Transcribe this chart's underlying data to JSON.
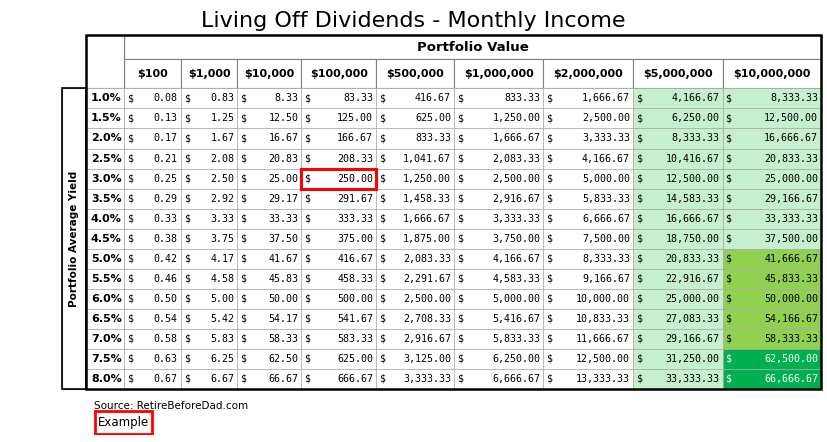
{
  "title": "Living Off Dividends - Monthly Income",
  "col_header_top": "Portfolio Value",
  "col_headers": [
    "$100",
    "$1,000",
    "$10,000",
    "$100,000",
    "$500,000",
    "$1,000,000",
    "$2,000,000",
    "$5,000,000",
    "$10,000,000"
  ],
  "row_headers": [
    "1.0%",
    "1.5%",
    "2.0%",
    "2.5%",
    "3.0%",
    "3.5%",
    "4.0%",
    "4.5%",
    "5.0%",
    "5.5%",
    "6.0%",
    "6.5%",
    "7.0%",
    "7.5%",
    "8.0%"
  ],
  "row_label": "Portfolio Average Yield",
  "source": "Source: RetireBeforeDad.com",
  "example_label": "Example",
  "data_dollar": [
    [
      "0.08",
      "0.83",
      "8.33",
      "83.33",
      "416.67",
      "833.33",
      "1,666.67",
      "4,166.67",
      "8,333.33"
    ],
    [
      "0.13",
      "1.25",
      "12.50",
      "125.00",
      "625.00",
      "1,250.00",
      "2,500.00",
      "6,250.00",
      "12,500.00"
    ],
    [
      "0.17",
      "1.67",
      "16.67",
      "166.67",
      "833.33",
      "1,666.67",
      "3,333.33",
      "8,333.33",
      "16,666.67"
    ],
    [
      "0.21",
      "2.08",
      "20.83",
      "208.33",
      "1,041.67",
      "2,083.33",
      "4,166.67",
      "10,416.67",
      "20,833.33"
    ],
    [
      "0.25",
      "2.50",
      "25.00",
      "250.00",
      "1,250.00",
      "2,500.00",
      "5,000.00",
      "12,500.00",
      "25,000.00"
    ],
    [
      "0.29",
      "2.92",
      "29.17",
      "291.67",
      "1,458.33",
      "2,916.67",
      "5,833.33",
      "14,583.33",
      "29,166.67"
    ],
    [
      "0.33",
      "3.33",
      "33.33",
      "333.33",
      "1,666.67",
      "3,333.33",
      "6,666.67",
      "16,666.67",
      "33,333.33"
    ],
    [
      "0.38",
      "3.75",
      "37.50",
      "375.00",
      "1,875.00",
      "3,750.00",
      "7,500.00",
      "18,750.00",
      "37,500.00"
    ],
    [
      "0.42",
      "4.17",
      "41.67",
      "416.67",
      "2,083.33",
      "4,166.67",
      "8,333.33",
      "20,833.33",
      "41,666.67"
    ],
    [
      "0.46",
      "4.58",
      "45.83",
      "458.33",
      "2,291.67",
      "4,583.33",
      "9,166.67",
      "22,916.67",
      "45,833.33"
    ],
    [
      "0.50",
      "5.00",
      "50.00",
      "500.00",
      "2,500.00",
      "5,000.00",
      "10,000.00",
      "25,000.00",
      "50,000.00"
    ],
    [
      "0.54",
      "5.42",
      "54.17",
      "541.67",
      "2,708.33",
      "5,416.67",
      "10,833.33",
      "27,083.33",
      "54,166.67"
    ],
    [
      "0.58",
      "5.83",
      "58.33",
      "583.33",
      "2,916.67",
      "5,833.33",
      "11,666.67",
      "29,166.67",
      "58,333.33"
    ],
    [
      "0.63",
      "6.25",
      "62.50",
      "625.00",
      "3,125.00",
      "6,250.00",
      "12,500.00",
      "31,250.00",
      "62,500.00"
    ],
    [
      "0.67",
      "6.67",
      "66.67",
      "666.67",
      "3,333.33",
      "6,666.67",
      "13,333.33",
      "33,333.33",
      "66,666.67"
    ]
  ],
  "highlight_cell": [
    4,
    3
  ],
  "bg_color": "#ffffff",
  "cell_bg_white": "#ffffff",
  "cell_bg_light_green": "#C6EFCE",
  "cell_bg_green": "#92D050",
  "cell_bg_dark_green": "#00B050",
  "highlight_border_color": "#FF0000",
  "grid_color": "#A9A9A9",
  "outer_border_color": "#000000",
  "title_fontsize": 16,
  "green_col_threshold": 7,
  "last_col": 8,
  "green_row_thresholds": [
    8,
    11,
    13
  ],
  "col_green_colors": {
    "7": [
      "#C6EFCE",
      "#C6EFCE",
      "#C6EFCE",
      "#C6EFCE",
      "#C6EFCE",
      "#C6EFCE",
      "#C6EFCE",
      "#C6EFCE",
      "#C6EFCE",
      "#C6EFCE",
      "#C6EFCE",
      "#C6EFCE",
      "#C6EFCE",
      "#C6EFCE",
      "#C6EFCE"
    ],
    "8": [
      "#C6EFCE",
      "#C6EFCE",
      "#C6EFCE",
      "#C6EFCE",
      "#C6EFCE",
      "#C6EFCE",
      "#C6EFCE",
      "#C6EFCE",
      "#92D050",
      "#92D050",
      "#92D050",
      "#92D050",
      "#92D050",
      "#00B050",
      "#00B050"
    ]
  }
}
